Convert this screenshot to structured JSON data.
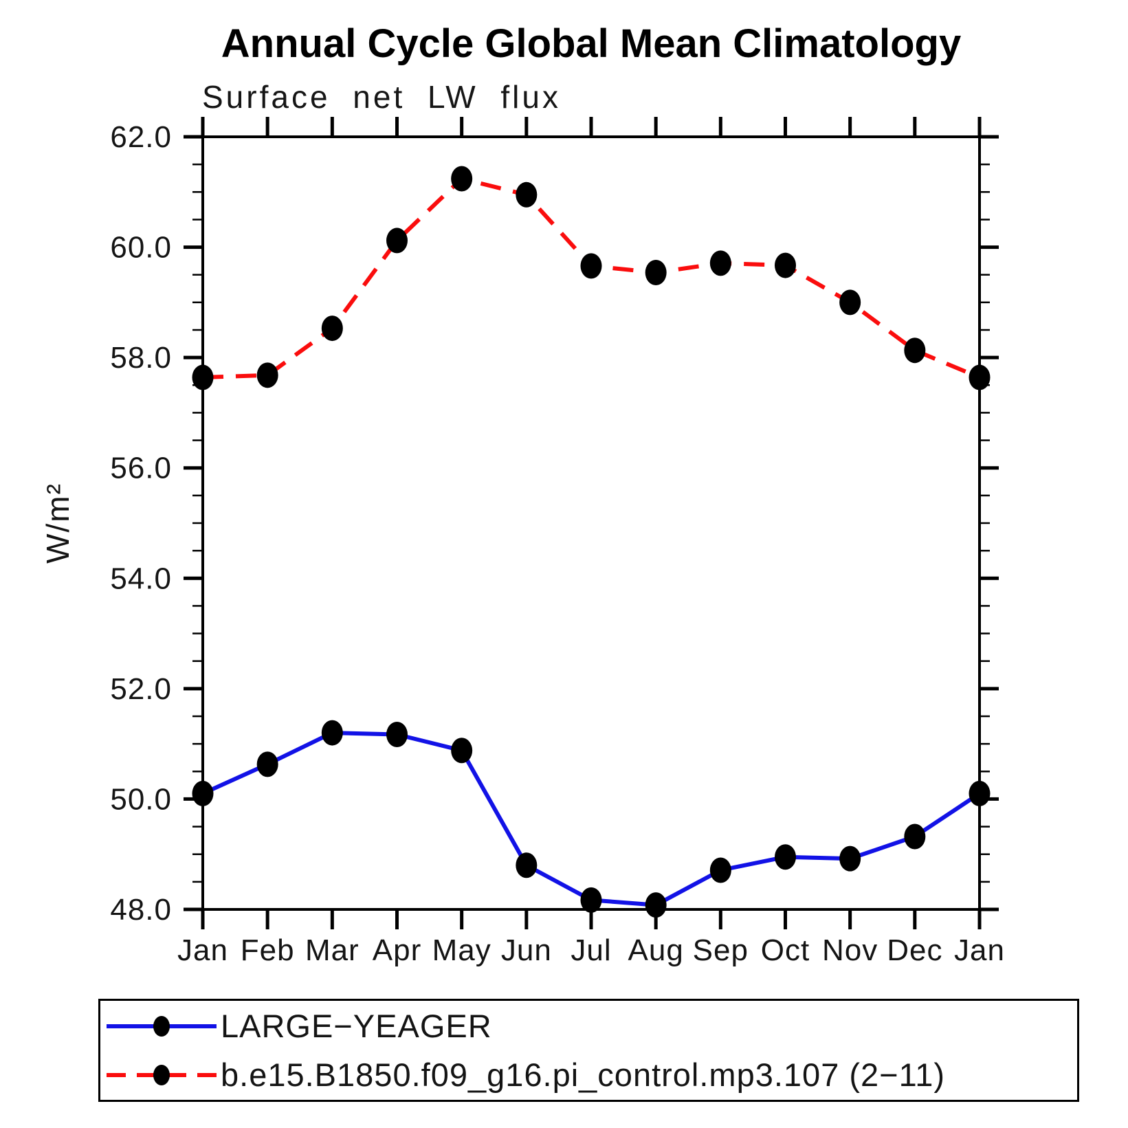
{
  "header": {
    "title": "Annual Cycle Global Mean Climatology",
    "subtitle": "Surface net LW flux"
  },
  "axes": {
    "ylabel": "W/m²",
    "ytick_labels": [
      "48.0",
      "50.0",
      "52.0",
      "54.0",
      "56.0",
      "58.0",
      "60.0",
      "62.0"
    ],
    "xtick_labels": [
      "Jan",
      "Feb",
      "Mar",
      "Apr",
      "May",
      "Jun",
      "Jul",
      "Aug",
      "Sep",
      "Oct",
      "Nov",
      "Dec",
      "Jan"
    ]
  },
  "colors": {
    "series1": "#1212e6",
    "series2": "#fa0d0d",
    "marker": "#000000",
    "axis": "#000000"
  },
  "chart_data": {
    "type": "line",
    "title": "Annual Cycle Global Mean Climatology",
    "subtitle": "Surface net LW flux",
    "xlabel": "",
    "ylabel": "W/m²",
    "x_categories": [
      "Jan",
      "Feb",
      "Mar",
      "Apr",
      "May",
      "Jun",
      "Jul",
      "Aug",
      "Sep",
      "Oct",
      "Nov",
      "Dec",
      "Jan"
    ],
    "ylim": [
      48.0,
      62.0
    ],
    "ytick_major_interval": 2.0,
    "ytick_minor_interval": 0.5,
    "grid": "off",
    "legend_position": "bottom-left-box",
    "series": [
      {
        "name": "LARGE−YEAGER",
        "line_style": "solid",
        "color": "#1212e6",
        "marker": "black-filled-circle",
        "values": [
          50.1,
          50.63,
          51.2,
          51.17,
          50.88,
          48.8,
          48.17,
          48.08,
          48.71,
          48.95,
          48.92,
          49.32,
          50.1
        ]
      },
      {
        "name": "b.e15.B1850.f09_g16.pi_control.mp3.107 (2−11)",
        "line_style": "dashed",
        "color": "#fa0d0d",
        "marker": "black-filled-circle",
        "values": [
          57.64,
          57.68,
          58.53,
          60.12,
          61.24,
          60.95,
          59.66,
          59.54,
          59.71,
          59.67,
          59.0,
          58.13,
          57.64
        ]
      }
    ]
  }
}
